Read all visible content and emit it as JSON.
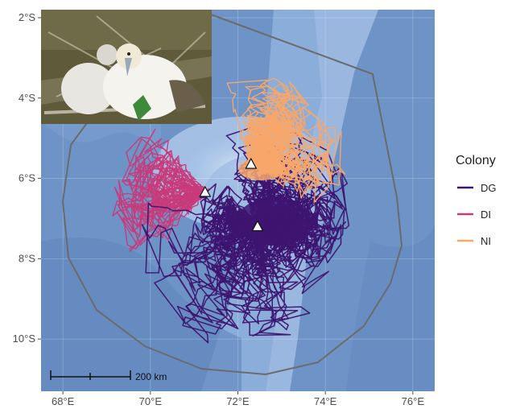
{
  "map": {
    "x_ticks": [
      "68°E",
      "70°E",
      "72°E",
      "74°E",
      "76°E"
    ],
    "y_ticks": [
      "2°S",
      "4°S",
      "6°S",
      "8°S",
      "10°S"
    ],
    "lon_range": [
      67.5,
      76.5
    ],
    "lat_range": [
      -11.3,
      -1.8
    ],
    "background": "bathymetry",
    "ocean_colors": {
      "deep": "#6e93c6",
      "mid": "#8fb0dc",
      "shallow": "#c7dcf3",
      "shelf": "#e2eef9"
    },
    "boundary_color": "#6b6b6b"
  },
  "legend": {
    "title": "Colony",
    "items": [
      {
        "label": "DG",
        "color": "#3d1470"
      },
      {
        "label": "DI",
        "color": "#c83a7a"
      },
      {
        "label": "NI",
        "color": "#f8a76a"
      }
    ]
  },
  "colonies": [
    {
      "label": "DG",
      "lon": 72.45,
      "lat": -7.2,
      "color": "#3d1470"
    },
    {
      "label": "DI",
      "lon": 71.25,
      "lat": -6.35,
      "color": "#c83a7a"
    },
    {
      "label": "NI",
      "lon": 72.3,
      "lat": -5.65,
      "color": "#f8a76a"
    }
  ],
  "scale_bar": {
    "label": "200 km"
  },
  "inset_photo": {
    "subject": "red-footed booby chick",
    "icon": "bird-photo"
  }
}
